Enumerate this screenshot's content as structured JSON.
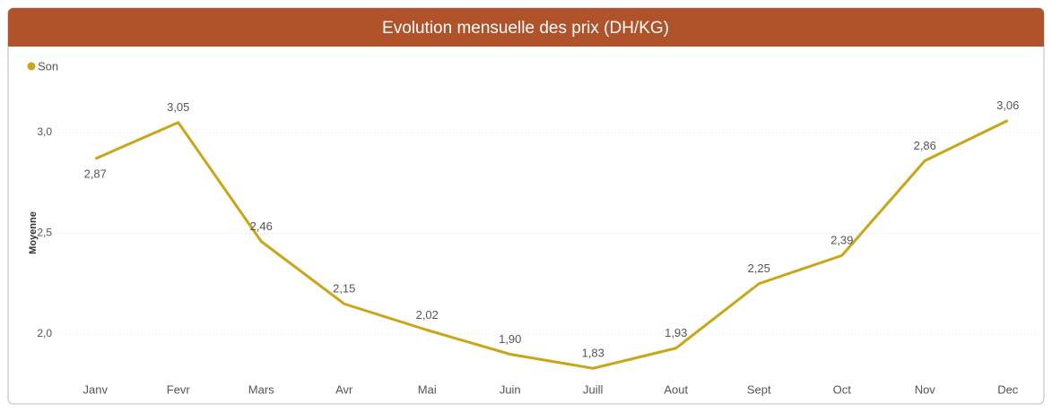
{
  "chart_data": {
    "type": "line",
    "title": "Evolution mensuelle des prix (DH/KG)",
    "y_label": "Moyenne",
    "categories": [
      "Janv",
      "Fevr",
      "Mars",
      "Avr",
      "Mai",
      "Juin",
      "Juill",
      "Aout",
      "Sept",
      "Oct",
      "Nov",
      "Dec"
    ],
    "series": [
      {
        "name": "Son",
        "color": "#c9a617",
        "values": [
          2.87,
          3.05,
          2.46,
          2.15,
          2.02,
          1.9,
          1.83,
          1.93,
          2.25,
          2.39,
          2.86,
          3.06
        ],
        "value_labels": [
          "2,87",
          "3,05",
          "2,46",
          "2,15",
          "2,02",
          "1,90",
          "1,83",
          "1,93",
          "2,25",
          "2,39",
          "2,86",
          "3,06"
        ]
      }
    ],
    "ylim": [
      1.8,
      3.2
    ],
    "yticks": [
      {
        "value": 2.0,
        "label": "2,0"
      },
      {
        "value": 2.5,
        "label": "2,5"
      },
      {
        "value": 3.0,
        "label": "3,0"
      }
    ],
    "grid": true,
    "legend": "top-left"
  }
}
